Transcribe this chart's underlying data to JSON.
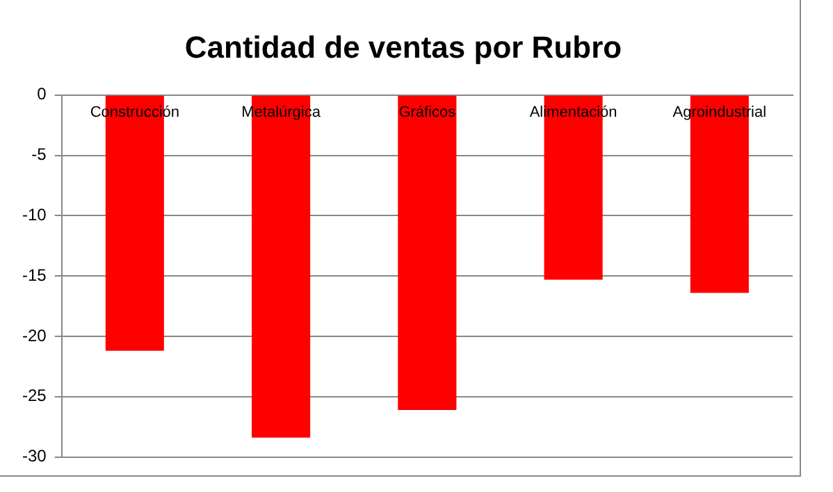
{
  "chart_data": {
    "type": "bar",
    "title": "Cantidad de ventas por Rubro",
    "categories": [
      "Construcción",
      "Metalúrgica",
      "Gráficos",
      "Alimentación",
      "Agroindustrial"
    ],
    "values": [
      -21.2,
      -28.4,
      -26.1,
      -15.3,
      -16.4
    ],
    "color": "#ff0000",
    "ylim": [
      -30,
      0
    ],
    "yticks": [
      -30,
      -25,
      -20,
      -15,
      -10,
      -5,
      0
    ],
    "grid": "y"
  }
}
